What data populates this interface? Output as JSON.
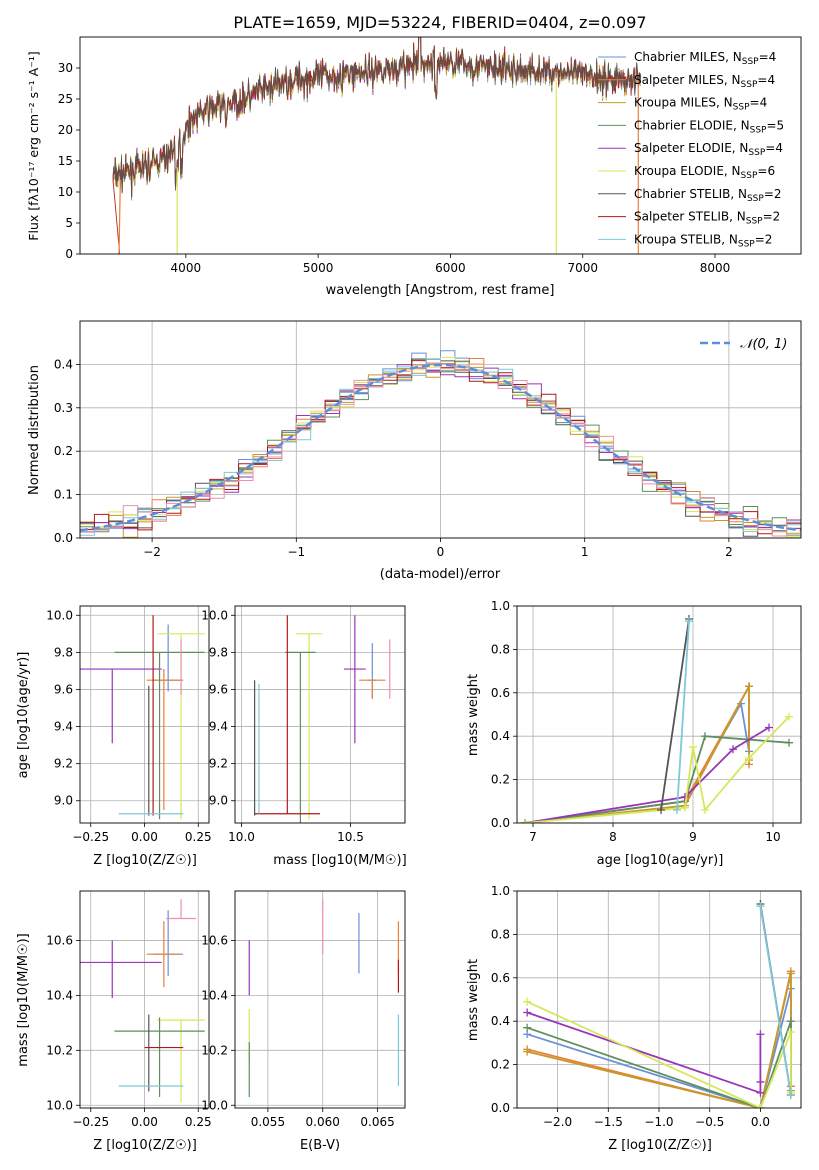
{
  "figure": {
    "title": "PLATE=1659, MJD=53224, FIBERID=0404, z=0.097"
  },
  "chart_data": [
    {
      "panel": "spectrum",
      "type": "line",
      "xlabel": "wavelength [Angstrom, rest frame]",
      "ylabel": "Flux [fλ10⁻¹⁷ erg cm⁻² s⁻¹ A⁻¹]",
      "xlim": [
        3200,
        8650
      ],
      "ylim": [
        0,
        35
      ],
      "xticks": [
        4000,
        5000,
        6000,
        7000,
        8000
      ],
      "yticks": [
        0,
        5,
        10,
        15,
        20,
        25,
        30
      ],
      "legend_position": "upper right",
      "grid": false,
      "observed_continuum": {
        "x": [
          3450,
          3550,
          3700,
          3850,
          3950,
          4050,
          4200,
          4400,
          4600,
          4800,
          5000,
          5200,
          5400,
          5600,
          5800,
          5950,
          6100,
          6300,
          6500,
          6700,
          6900,
          7100,
          7300,
          7400
        ],
        "y": [
          12.5,
          13,
          14,
          15.5,
          18,
          22,
          23.5,
          24.5,
          26.5,
          28,
          28.5,
          29,
          29.5,
          30,
          30.5,
          31,
          30.5,
          30,
          29.5,
          29.5,
          29,
          28.5,
          28,
          28
        ]
      },
      "series": [
        {
          "name": "Chabrier MILES, N_SSP=4",
          "color": "#6b8fd8"
        },
        {
          "name": "Salpeter MILES, N_SSP=4",
          "color": "#e8803a"
        },
        {
          "name": "Kroupa MILES, N_SSP=4",
          "color": "#c49a2a"
        },
        {
          "name": "Chabrier ELODIE, N_SSP=5",
          "color": "#5f8f5f"
        },
        {
          "name": "Salpeter ELODIE, N_SSP=4",
          "color": "#9a34b8"
        },
        {
          "name": "Kroupa ELODIE, N_SSP=6",
          "color": "#d6e85a"
        },
        {
          "name": "Chabrier STELIB, N_SSP=2",
          "color": "#555555"
        },
        {
          "name": "Salpeter STELIB, N_SSP=2",
          "color": "#b01818"
        },
        {
          "name": "Kroupa STELIB, N_SSP=2",
          "color": "#7ec8d8"
        }
      ]
    },
    {
      "panel": "residuals",
      "type": "histogram",
      "xlabel": "(data-model)/error",
      "ylabel": "Normed distribution",
      "xlim": [
        -2.5,
        2.5
      ],
      "ylim": [
        0,
        0.5
      ],
      "xticks": [
        -2,
        -1,
        0,
        1,
        2
      ],
      "yticks": [
        0.0,
        0.1,
        0.2,
        0.3,
        0.4
      ],
      "grid": true,
      "legend": [
        "N(0,1)"
      ],
      "gaussian": {
        "mean": 0,
        "sigma": 1,
        "color": "#5b8fdb"
      }
    },
    {
      "panel": "age_vs_Z",
      "type": "errorbar",
      "xlabel": "Z [log10(Z/Z☉)]",
      "ylabel": "age  [log10(age/yr)]",
      "xlim": [
        -0.3,
        0.3
      ],
      "ylim": [
        8.88,
        10.05
      ],
      "xticks": [
        -0.25,
        0.0,
        0.25
      ],
      "yticks": [
        9.0,
        9.2,
        9.4,
        9.6,
        9.8,
        10.0
      ],
      "grid": true,
      "points": [
        {
          "color": "#6b8fd8",
          "x": 0.11,
          "xerr": 0.07,
          "y": 9.65,
          "yerr": [
            0.06,
            0.3
          ]
        },
        {
          "color": "#e8803a",
          "x": 0.09,
          "xerr": 0.08,
          "y": 9.65,
          "yerr": [
            0.7,
            0.06
          ]
        },
        {
          "color": "#9a34b8",
          "x": -0.15,
          "xerr": 0.23,
          "y": 9.71,
          "yerr": [
            0.4,
            0.0
          ]
        },
        {
          "color": "#d6e85a",
          "x": 0.17,
          "xerr": 0.11,
          "y": 9.9,
          "yerr": [
            1.0,
            0.0
          ]
        },
        {
          "color": "#5f8f5f",
          "x": 0.07,
          "xerr": 0.21,
          "y": 9.8,
          "yerr": [
            0.9,
            0.0
          ]
        },
        {
          "color": "#555555",
          "x": 0.02,
          "xerr": 0.0,
          "y": 9.62,
          "yerr": [
            0.7,
            0.0
          ]
        },
        {
          "color": "#b01818",
          "x": 0.04,
          "xerr": 0.0,
          "y": 9.55,
          "yerr": [
            0.63,
            0.45
          ]
        },
        {
          "color": "#7ec8d8",
          "x": 0.03,
          "xerr": 0.15,
          "y": 8.93,
          "yerr": [
            0.0,
            0.0
          ]
        },
        {
          "color": "#f08fa8",
          "x": 0.17,
          "xerr": 0.0,
          "y": 9.77,
          "yerr": [
            0.2,
            0.1
          ]
        }
      ]
    },
    {
      "panel": "age_vs_mass",
      "type": "errorbar",
      "xlabel": "mass [log10(M/M☉)]",
      "xlim": [
        9.97,
        10.75
      ],
      "ylim": [
        8.88,
        10.05
      ],
      "xticks": [
        10.0,
        10.5
      ],
      "yticks": [
        9.0,
        9.2,
        9.4,
        9.6,
        9.8,
        10.0
      ],
      "grid": true,
      "points": [
        {
          "color": "#6b8fd8",
          "x": 10.6,
          "xerr": 0.02,
          "y": 9.65,
          "yerr": [
            0.1,
            0.2
          ]
        },
        {
          "color": "#e8803a",
          "x": 10.6,
          "xerr": 0.06,
          "y": 9.65,
          "yerr": [
            0.1,
            0.0
          ]
        },
        {
          "color": "#9a34b8",
          "x": 10.52,
          "xerr": 0.05,
          "y": 9.71,
          "yerr": [
            0.4,
            0.29
          ]
        },
        {
          "color": "#d6e85a",
          "x": 10.31,
          "xerr": 0.06,
          "y": 9.9,
          "yerr": [
            1.0,
            0.0
          ]
        },
        {
          "color": "#5f8f5f",
          "x": 10.27,
          "xerr": 0.07,
          "y": 9.8,
          "yerr": [
            0.93,
            0.0
          ]
        },
        {
          "color": "#555555",
          "x": 10.06,
          "xerr": 0.0,
          "y": 9.62,
          "yerr": [
            0.7,
            0.03
          ]
        },
        {
          "color": "#b01818",
          "x": 10.21,
          "xerr": 0.15,
          "y": 8.93,
          "yerr": [
            0.0,
            1.07
          ]
        },
        {
          "color": "#7ec8d8",
          "x": 10.08,
          "xerr": 0.0,
          "y": 8.93,
          "yerr": [
            0.0,
            0.7
          ]
        },
        {
          "color": "#f08fa8",
          "x": 10.68,
          "xerr": 0.0,
          "y": 9.72,
          "yerr": [
            0.17,
            0.15
          ]
        }
      ]
    },
    {
      "panel": "massweight_vs_age",
      "type": "line",
      "xlabel": "age  [log10(age/yr)]",
      "ylabel": "mass weight",
      "xlim": [
        6.8,
        10.35
      ],
      "ylim": [
        0,
        1
      ],
      "xticks": [
        7,
        8,
        9,
        10
      ],
      "yticks": [
        0.0,
        0.2,
        0.4,
        0.6,
        0.8,
        1.0
      ],
      "grid": true,
      "series": [
        {
          "color": "#6b8fd8",
          "x": [
            6.9,
            8.9,
            9.6,
            9.7
          ],
          "y": [
            0.0,
            0.1,
            0.55,
            0.33
          ]
        },
        {
          "color": "#e8803a",
          "x": [
            6.9,
            8.9,
            9.7,
            9.7
          ],
          "y": [
            0.0,
            0.1,
            0.63,
            0.27
          ]
        },
        {
          "color": "#c49a2a",
          "x": [
            6.9,
            8.9,
            9.7,
            9.7
          ],
          "y": [
            0.0,
            0.08,
            0.63,
            0.29
          ]
        },
        {
          "color": "#5f8f5f",
          "x": [
            6.9,
            8.9,
            9.15,
            10.2
          ],
          "y": [
            0.0,
            0.1,
            0.4,
            0.37
          ]
        },
        {
          "color": "#9a34b8",
          "x": [
            6.9,
            8.9,
            9.5,
            9.95
          ],
          "y": [
            0.0,
            0.12,
            0.34,
            0.44
          ]
        },
        {
          "color": "#d6e85a",
          "x": [
            6.9,
            8.9,
            9.0,
            9.15,
            9.7,
            10.2
          ],
          "y": [
            0.0,
            0.07,
            0.35,
            0.06,
            0.3,
            0.49
          ]
        },
        {
          "color": "#555555",
          "x": [
            8.6,
            8.95
          ],
          "y": [
            0.06,
            0.94
          ]
        },
        {
          "color": "#7ec8d8",
          "x": [
            8.8,
            8.95
          ],
          "y": [
            0.06,
            0.93
          ]
        }
      ]
    },
    {
      "panel": "mass_vs_Z",
      "type": "errorbar",
      "xlabel": "Z [log10(Z/Z☉)]",
      "ylabel": "mass [log10(M/M☉)]",
      "xlim": [
        -0.3,
        0.3
      ],
      "ylim": [
        9.99,
        10.78
      ],
      "xticks": [
        -0.25,
        0.0,
        0.25
      ],
      "yticks": [
        10.0,
        10.2,
        10.4,
        10.6
      ],
      "grid": true,
      "points": [
        {
          "color": "#6b8fd8",
          "x": 0.11,
          "xerr": 0.07,
          "y": 10.55,
          "yerr": [
            0.08,
            0.16
          ]
        },
        {
          "color": "#e8803a",
          "x": 0.09,
          "xerr": 0.08,
          "y": 10.55,
          "yerr": [
            0.12,
            0.12
          ]
        },
        {
          "color": "#9a34b8",
          "x": -0.15,
          "xerr": 0.23,
          "y": 10.52,
          "yerr": [
            0.13,
            0.08
          ]
        },
        {
          "color": "#d6e85a",
          "x": 0.17,
          "xerr": 0.11,
          "y": 10.31,
          "yerr": [
            0.3,
            0.0
          ]
        },
        {
          "color": "#5f8f5f",
          "x": 0.07,
          "xerr": 0.21,
          "y": 10.27,
          "yerr": [
            0.24,
            0.05
          ]
        },
        {
          "color": "#555555",
          "x": 0.02,
          "xerr": 0.0,
          "y": 10.2,
          "yerr": [
            0.15,
            0.13
          ]
        },
        {
          "color": "#b01818",
          "x": 0.09,
          "xerr": 0.09,
          "y": 10.21,
          "yerr": [
            0.0,
            0.0
          ]
        },
        {
          "color": "#7ec8d8",
          "x": 0.03,
          "xerr": 0.15,
          "y": 10.07,
          "yerr": [
            0.0,
            0.0
          ]
        },
        {
          "color": "#f08fa8",
          "x": 0.17,
          "xerr": 0.07,
          "y": 10.68,
          "yerr": [
            0.0,
            0.07
          ]
        }
      ]
    },
    {
      "panel": "mass_vs_EBV",
      "type": "errorbar",
      "xlabel": "E(B-V)",
      "xlim": [
        0.052,
        0.0675
      ],
      "ylim": [
        9.99,
        10.78
      ],
      "xticks": [
        0.055,
        0.06,
        0.065
      ],
      "yticks": [
        10.0,
        10.2,
        10.4,
        10.6
      ],
      "grid": true,
      "points": [
        {
          "color": "#6b8fd8",
          "x": 0.0633,
          "y": 10.59,
          "yerr": [
            0.11,
            0.11
          ]
        },
        {
          "color": "#f08fa8",
          "x": 0.06,
          "y": 10.65,
          "yerr": [
            0.1,
            0.1
          ]
        },
        {
          "color": "#9a34b8",
          "x": 0.0533,
          "y": 10.5,
          "yerr": [
            0.1,
            0.1
          ]
        },
        {
          "color": "#d6e85a",
          "x": 0.0533,
          "y": 10.26,
          "yerr": [
            0.1,
            0.09
          ]
        },
        {
          "color": "#5f8f5f",
          "x": 0.0533,
          "y": 10.13,
          "yerr": [
            0.1,
            0.1
          ]
        },
        {
          "color": "#e8803a",
          "x": 0.0669,
          "y": 10.55,
          "yerr": [
            0.07,
            0.12
          ]
        },
        {
          "color": "#b01818",
          "x": 0.0669,
          "y": 10.47,
          "yerr": [
            0.06,
            0.06
          ]
        },
        {
          "color": "#7ec8d8",
          "x": 0.0669,
          "y": 10.2,
          "yerr": [
            0.13,
            0.13
          ]
        }
      ]
    },
    {
      "panel": "massweight_vs_Z",
      "type": "line",
      "xlabel": "Z [log10(Z/Z☉)]",
      "ylabel": "mass weight",
      "xlim": [
        -2.4,
        0.4
      ],
      "ylim": [
        0,
        1
      ],
      "xticks": [
        -2.0,
        -1.5,
        -1.0,
        -0.5,
        0.0
      ],
      "yticks": [
        0.0,
        0.2,
        0.4,
        0.6,
        0.8,
        1.0
      ],
      "grid": true,
      "series": [
        {
          "color": "#6b8fd8",
          "x": [
            -2.3,
            0.0,
            0.3,
            0.3
          ],
          "y": [
            0.34,
            0.0,
            0.55,
            0.1
          ]
        },
        {
          "color": "#e8803a",
          "x": [
            -2.3,
            0.0,
            0.3,
            0.3
          ],
          "y": [
            0.27,
            0.0,
            0.63,
            0.1
          ]
        },
        {
          "color": "#c49a2a",
          "x": [
            -2.3,
            0.0,
            0.3,
            0.3
          ],
          "y": [
            0.26,
            0.0,
            0.62,
            0.08
          ]
        },
        {
          "color": "#5f8f5f",
          "x": [
            -2.3,
            0.0,
            0.3,
            0.3
          ],
          "y": [
            0.37,
            0.0,
            0.4,
            0.06
          ]
        },
        {
          "color": "#9a34b8",
          "x": [
            -2.3,
            0.0,
            0.0,
            0.0
          ],
          "y": [
            0.44,
            0.07,
            0.34,
            0.12
          ]
        },
        {
          "color": "#d6e85a",
          "x": [
            -2.3,
            0.0,
            0.3,
            0.3
          ],
          "y": [
            0.49,
            0.0,
            0.35,
            0.07
          ]
        },
        {
          "color": "#555555",
          "x": [
            0.0,
            0.3
          ],
          "y": [
            0.94,
            0.06
          ]
        },
        {
          "color": "#7ec8d8",
          "x": [
            0.0,
            0.3
          ],
          "y": [
            0.93,
            0.06
          ]
        }
      ]
    }
  ]
}
